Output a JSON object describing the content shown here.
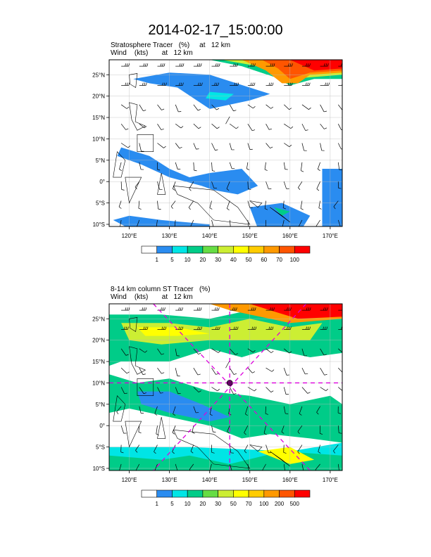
{
  "title": "2014-02-17_15:00:00",
  "panels": [
    {
      "id": "top",
      "field_line": "Stratosphere Tracer   (%)     at   12 km",
      "wind_line": "Wind    (kts)       at   12 km",
      "lat_ticks": [
        "25°N",
        "20°N",
        "15°N",
        "10°N",
        "5°N",
        "0°",
        "5°S",
        "10°S"
      ],
      "lon_ticks": [
        "120°E",
        "130°E",
        "140°E",
        "150°E",
        "160°E",
        "170°E"
      ],
      "colorbar_labels": [
        "1",
        "5",
        "10",
        "20",
        "30",
        "40",
        "50",
        "60",
        "70",
        "100"
      ]
    },
    {
      "id": "bottom",
      "field_line": "8-14 km column ST Tracer   (%)",
      "wind_line": "Wind    (kts)       at   12 km",
      "lat_ticks": [
        "25°N",
        "20°N",
        "15°N",
        "10°N",
        "5°N",
        "0°",
        "5°S",
        "10°S"
      ],
      "lon_ticks": [
        "120°E",
        "130°E",
        "140°E",
        "150°E",
        "160°E",
        "170°E"
      ],
      "colorbar_labels": [
        "1",
        "5",
        "10",
        "20",
        "30",
        "50",
        "70",
        "100",
        "200",
        "500"
      ]
    }
  ],
  "colorbar_colors": [
    "#ffffff",
    "#2a8cf0",
    "#00e5e5",
    "#00cc88",
    "#66dd44",
    "#ccee33",
    "#ffff00",
    "#ffcc00",
    "#ff9900",
    "#ff5500",
    "#ff0000"
  ],
  "map": {
    "lon_range": [
      115,
      173
    ],
    "lat_range": [
      -10.5,
      28.5
    ]
  }
}
